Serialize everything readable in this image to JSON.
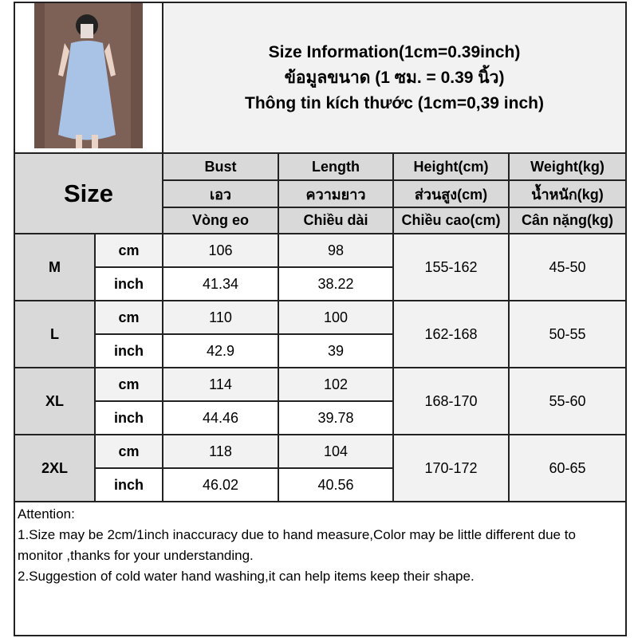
{
  "title_lines": [
    "Size Information(1cm=0.39inch)",
    "ข้อมูลขนาด (1 ซม. = 0.39 นิ้ว)",
    "Thông tin kích thước (1cm=0,39 inch)"
  ],
  "size_label": "Size",
  "columns": [
    [
      "Bust",
      "เอว",
      "Vòng eo"
    ],
    [
      "Length",
      "ความยาว",
      "Chiều dài"
    ],
    [
      "Height(cm)",
      "ส่วนสูง(cm)",
      "Chiều cao(cm)"
    ],
    [
      "Weight(kg)",
      "น้ำหนัก(kg)",
      "Cân nặng(kg)"
    ]
  ],
  "units": {
    "cm": "cm",
    "inch": "inch"
  },
  "rows": [
    {
      "size": "M",
      "cm": [
        "106",
        "98"
      ],
      "inch": [
        "41.34",
        "38.22"
      ],
      "height": "155-162",
      "weight": "45-50"
    },
    {
      "size": "L",
      "cm": [
        "110",
        "100"
      ],
      "inch": [
        "42.9",
        "39"
      ],
      "height": "162-168",
      "weight": "50-55"
    },
    {
      "size": "XL",
      "cm": [
        "114",
        "102"
      ],
      "inch": [
        "44.46",
        "39.78"
      ],
      "height": "168-170",
      "weight": "55-60"
    },
    {
      "size": "2XL",
      "cm": [
        "118",
        "104"
      ],
      "inch": [
        "46.02",
        "40.56"
      ],
      "height": "170-172",
      "weight": "60-65"
    }
  ],
  "attention": {
    "heading": "Attention:",
    "notes": [
      "1.Size may be 2cm/1inch inaccuracy due to hand measure,Color may be little different due to monitor ,thanks for your understanding.",
      "2.Suggestion of cold water hand washing,it can help items keep their shape."
    ]
  },
  "colors": {
    "header_gray": "#d9d9d9",
    "light_gray": "#f2f2f2",
    "dress_blue": "#a9c3e6"
  }
}
